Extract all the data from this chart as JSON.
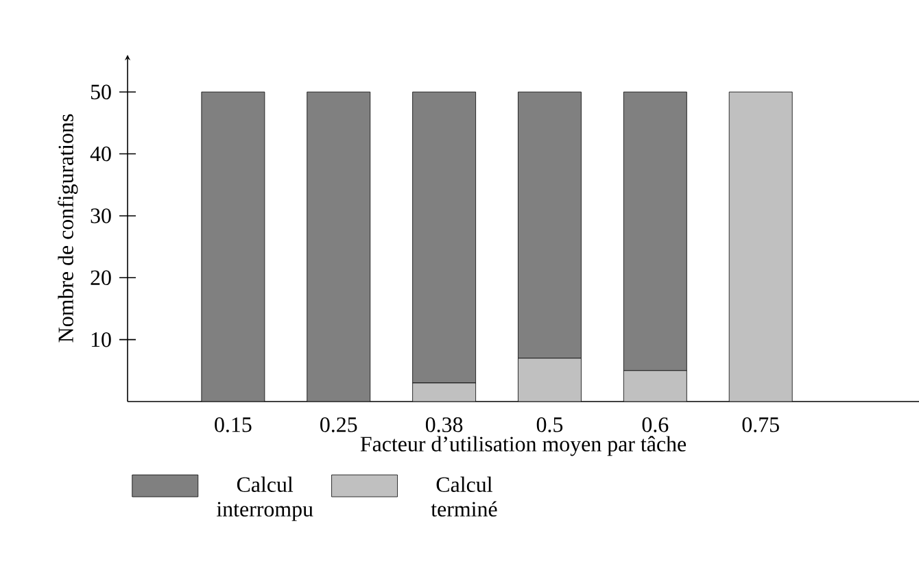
{
  "chart_data": {
    "type": "bar",
    "stacked": true,
    "xlabel": "Facteur d’utilisation moyen par tâche",
    "ylabel": "Nombre de configurations",
    "categories": [
      "0.15",
      "0.25",
      "0.38",
      "0.5",
      "0.6",
      "0.75"
    ],
    "series": [
      {
        "name": "Calcul terminé",
        "color": "#c0c0c0",
        "values": [
          0,
          0,
          3,
          7,
          5,
          50
        ]
      },
      {
        "name": "Calcul interrompu",
        "color": "#808080",
        "values": [
          50,
          50,
          47,
          43,
          45,
          0
        ]
      }
    ],
    "ylim": [
      0,
      56
    ],
    "yticks": [
      10,
      20,
      30,
      40,
      50
    ],
    "legend": "bottom",
    "grid": false
  }
}
